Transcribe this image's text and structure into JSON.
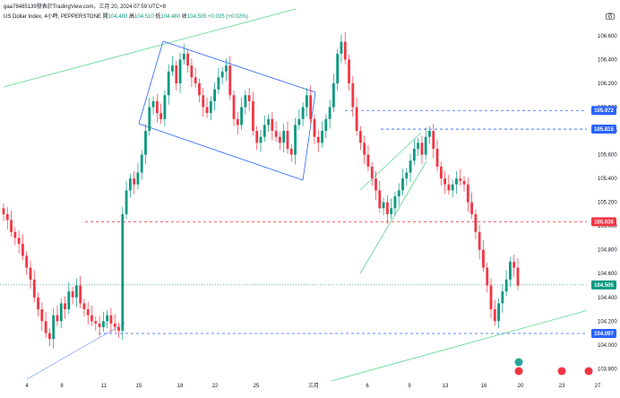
{
  "header": {
    "user_line": "gaa78485139發表於TradingView.com，三月 20, 2024 07:59 UTC+8",
    "symbol": "US Dollar Index, 4小時, PEPPERSTONE",
    "open_label": "開",
    "open": "104.480",
    "high_label": "高",
    "high": "104.510",
    "low_label": "低",
    "low": "104.480",
    "close_label": "收",
    "close": "104.505",
    "change": "+0.025 (+0.02%)"
  },
  "icons": {
    "camera": "camera-icon",
    "news": "flag-icon",
    "calendar": "event-icon"
  },
  "colors": {
    "up": "#089981",
    "down": "#f23645",
    "channel": "#2962ff",
    "trend": "#5bd68d",
    "support": "#2962ff",
    "resistance": "#f23645",
    "current": "#089981"
  },
  "chart_data": {
    "type": "candlestick",
    "y_ticks": [
      "106.600",
      "106.400",
      "106.200",
      "106.000",
      "105.800",
      "105.600",
      "105.400",
      "105.200",
      "105.000",
      "104.800",
      "104.600",
      "104.400",
      "104.200",
      "104.000",
      "103.800"
    ],
    "ylim": [
      103.75,
      106.72
    ],
    "x_ticks": [
      "4",
      "8",
      "11",
      "15",
      "18",
      "22",
      "25",
      "三月",
      "6",
      "9",
      "13",
      "16",
      "20",
      "23",
      "27"
    ],
    "price_labels": [
      {
        "value": 105.972,
        "text": "105.972",
        "color": "#2962ff"
      },
      {
        "value": 105.815,
        "text": "105.815",
        "color": "#2962ff"
      },
      {
        "value": 105.036,
        "text": "105.036",
        "color": "#f23645"
      },
      {
        "value": 104.505,
        "text": "104.505",
        "color": "#089981"
      },
      {
        "value": 104.097,
        "text": "104.097",
        "color": "#2962ff"
      }
    ],
    "candles_close": [
      105.1,
      105.05,
      104.95,
      104.9,
      104.85,
      104.75,
      104.65,
      104.55,
      104.4,
      104.3,
      104.2,
      104.1,
      104.05,
      104.25,
      104.2,
      104.35,
      104.3,
      104.45,
      104.4,
      104.5,
      104.35,
      104.3,
      104.25,
      104.2,
      104.18,
      104.15,
      104.2,
      104.25,
      104.18,
      104.15,
      104.12,
      105.1,
      105.3,
      105.4,
      105.35,
      105.45,
      105.6,
      105.8,
      106.0,
      106.05,
      105.95,
      105.9,
      106.1,
      106.3,
      106.35,
      106.2,
      106.4,
      106.45,
      106.35,
      106.25,
      106.2,
      106.1,
      106.0,
      105.95,
      106.05,
      106.15,
      106.25,
      106.3,
      106.35,
      106.1,
      105.9,
      105.85,
      106.0,
      106.1,
      106.05,
      105.8,
      105.7,
      105.75,
      105.85,
      105.9,
      105.8,
      105.75,
      105.7,
      105.8,
      105.65,
      105.6,
      105.85,
      105.9,
      106.0,
      106.1,
      105.9,
      105.75,
      105.7,
      105.8,
      105.9,
      106.0,
      106.2,
      106.45,
      106.55,
      106.4,
      106.2,
      106.0,
      105.8,
      105.7,
      105.6,
      105.5,
      105.4,
      105.3,
      105.15,
      105.2,
      105.1,
      105.15,
      105.25,
      105.3,
      105.4,
      105.45,
      105.55,
      105.65,
      105.7,
      105.6,
      105.75,
      105.8,
      105.65,
      105.5,
      105.4,
      105.35,
      105.3,
      105.35,
      105.4,
      105.38,
      105.35,
      105.2,
      105.1,
      104.95,
      104.8,
      104.65,
      104.5,
      104.3,
      104.2,
      104.35,
      104.45,
      104.55,
      104.7,
      104.65,
      104.5
    ]
  }
}
